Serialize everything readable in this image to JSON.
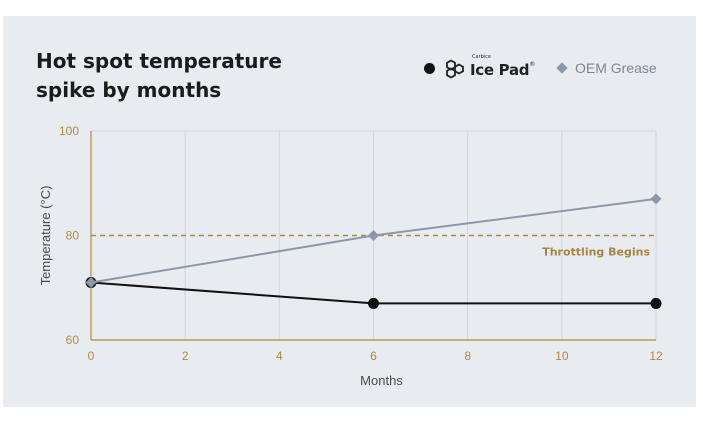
{
  "title": "Hot spot temperature spike by months",
  "legend": {
    "ice_pad": {
      "brand_small": "Carbice",
      "name": "Ice Pad",
      "mark": "®"
    },
    "oem": {
      "name": "OEM Grease"
    }
  },
  "colors": {
    "background": "#e8ecf1",
    "ice_pad": "#111111",
    "oem": "#8a98a8",
    "threshold": "#b08a3c",
    "grid": "#cfd6df"
  },
  "icons": {
    "ice_pad_logo": "hexagon-chain-icon",
    "ice_pad_marker": "circle-marker",
    "oem_marker": "diamond-marker"
  },
  "chart_data": {
    "type": "line",
    "title": "Hot spot temperature spike by months",
    "xlabel": "Months",
    "ylabel": "Temperature (°C)",
    "xlim": [
      0,
      12
    ],
    "ylim": [
      60,
      100
    ],
    "xticks": [
      0,
      2,
      4,
      6,
      8,
      10,
      12
    ],
    "yticks": [
      60,
      80,
      100
    ],
    "grid": "vertical",
    "legend_position": "top-right",
    "series": [
      {
        "name": "Ice Pad",
        "marker": "circle",
        "x": [
          0,
          6,
          12
        ],
        "y": [
          71,
          67,
          67
        ]
      },
      {
        "name": "OEM Grease",
        "marker": "diamond",
        "x": [
          0,
          6,
          12
        ],
        "y": [
          71,
          80,
          87
        ]
      }
    ],
    "annotations": [
      {
        "type": "hline",
        "y": 80,
        "label": "Throttling Begins"
      }
    ]
  }
}
